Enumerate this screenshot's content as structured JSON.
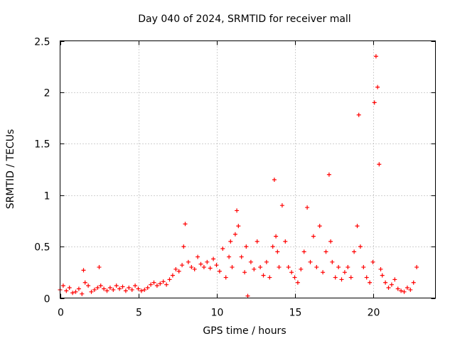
{
  "chart_data": {
    "type": "scatter",
    "title": "Day 040 of 2024, SRMTID for receiver mall",
    "xlabel": "GPS time / hours",
    "ylabel": "SRMTID / TECUs",
    "xlim": [
      0,
      24
    ],
    "ylim": [
      0,
      2.5
    ],
    "x_ticks": [
      0,
      5,
      10,
      15,
      20
    ],
    "x_tick_labels": [
      "0",
      "5",
      "10",
      "15",
      "20"
    ],
    "y_ticks": [
      0,
      0.5,
      1,
      1.5,
      2,
      2.5
    ],
    "y_tick_labels": [
      "0",
      "0.5",
      "1",
      "1.5",
      "2",
      "2.5"
    ],
    "grid": true,
    "marker": "+",
    "color": "#ff0000",
    "series": [
      {
        "name": "SRMTID",
        "x": [
          0.0,
          0.2,
          0.4,
          0.6,
          0.8,
          1.0,
          1.2,
          1.4,
          1.5,
          1.6,
          1.8,
          2.0,
          2.2,
          2.4,
          2.5,
          2.6,
          2.8,
          3.0,
          3.2,
          3.4,
          3.6,
          3.8,
          4.0,
          4.2,
          4.4,
          4.6,
          4.8,
          5.0,
          5.2,
          5.4,
          5.6,
          5.8,
          6.0,
          6.2,
          6.4,
          6.6,
          6.8,
          7.0,
          7.2,
          7.4,
          7.6,
          7.8,
          7.9,
          8.0,
          8.2,
          8.4,
          8.6,
          8.8,
          9.0,
          9.2,
          9.4,
          9.6,
          9.8,
          10.0,
          10.2,
          10.4,
          10.6,
          10.8,
          10.9,
          11.0,
          11.2,
          11.3,
          11.4,
          11.6,
          11.8,
          11.9,
          12.0,
          12.2,
          12.4,
          12.6,
          12.8,
          13.0,
          13.2,
          13.4,
          13.6,
          13.7,
          13.8,
          13.9,
          14.0,
          14.2,
          14.4,
          14.6,
          14.8,
          15.0,
          15.2,
          15.4,
          15.6,
          15.8,
          16.0,
          16.2,
          16.4,
          16.6,
          16.8,
          17.0,
          17.2,
          17.3,
          17.4,
          17.6,
          17.8,
          18.0,
          18.2,
          18.4,
          18.6,
          18.8,
          19.0,
          19.1,
          19.2,
          19.4,
          19.6,
          19.8,
          20.0,
          20.1,
          20.2,
          20.3,
          20.4,
          20.5,
          20.6,
          20.8,
          21.0,
          21.2,
          21.4,
          21.6,
          21.8,
          22.0,
          22.2,
          22.4,
          22.6,
          22.8
        ],
        "y": [
          0.08,
          0.12,
          0.07,
          0.1,
          0.05,
          0.06,
          0.09,
          0.04,
          0.27,
          0.15,
          0.12,
          0.06,
          0.08,
          0.1,
          0.3,
          0.12,
          0.09,
          0.07,
          0.1,
          0.08,
          0.12,
          0.09,
          0.11,
          0.07,
          0.1,
          0.08,
          0.12,
          0.09,
          0.07,
          0.08,
          0.1,
          0.13,
          0.15,
          0.12,
          0.14,
          0.16,
          0.13,
          0.18,
          0.22,
          0.28,
          0.26,
          0.32,
          0.5,
          0.72,
          0.35,
          0.3,
          0.28,
          0.4,
          0.33,
          0.3,
          0.35,
          0.29,
          0.38,
          0.32,
          0.26,
          0.48,
          0.2,
          0.4,
          0.55,
          0.3,
          0.62,
          0.85,
          0.7,
          0.4,
          0.25,
          0.5,
          0.02,
          0.35,
          0.28,
          0.55,
          0.3,
          0.22,
          0.35,
          0.2,
          0.5,
          1.15,
          0.6,
          0.45,
          0.3,
          0.9,
          0.55,
          0.3,
          0.25,
          0.2,
          0.15,
          0.28,
          0.45,
          0.88,
          0.35,
          0.6,
          0.3,
          0.7,
          0.25,
          0.45,
          1.2,
          0.55,
          0.35,
          0.2,
          0.3,
          0.18,
          0.25,
          0.3,
          0.2,
          0.45,
          0.7,
          1.78,
          0.5,
          0.3,
          0.2,
          0.15,
          0.35,
          1.9,
          2.35,
          2.05,
          1.3,
          0.28,
          0.22,
          0.15,
          0.1,
          0.13,
          0.18,
          0.09,
          0.07,
          0.06,
          0.1,
          0.08,
          0.15,
          0.3
        ]
      }
    ]
  }
}
